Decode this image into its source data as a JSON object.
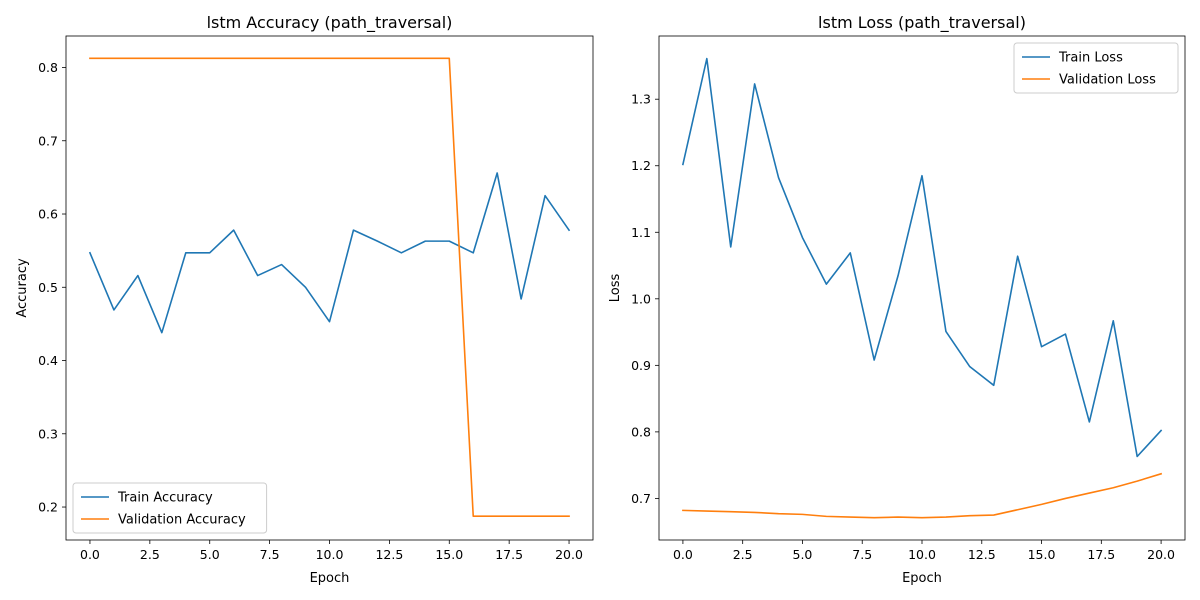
{
  "chart_data": [
    {
      "type": "line",
      "title": "lstm Accuracy (path_traversal)",
      "xlabel": "Epoch",
      "ylabel": "Accuracy",
      "xlim": [
        -1,
        21
      ],
      "ylim": [
        0.155,
        0.843
      ],
      "xticks": [
        0,
        2.5,
        5,
        7.5,
        10,
        12.5,
        15,
        17.5,
        20
      ],
      "xtick_labels": [
        "0.0",
        "2.5",
        "5.0",
        "7.5",
        "10.0",
        "12.5",
        "15.0",
        "17.5",
        "20.0"
      ],
      "yticks": [
        0.2,
        0.3,
        0.4,
        0.5,
        0.6,
        0.7,
        0.8
      ],
      "ytick_labels": [
        "0.2",
        "0.3",
        "0.4",
        "0.5",
        "0.6",
        "0.7",
        "0.8"
      ],
      "legend_position": "lower left",
      "grid": false,
      "x": [
        0,
        1,
        2,
        3,
        4,
        5,
        6,
        7,
        8,
        9,
        10,
        11,
        12,
        13,
        14,
        15,
        16,
        17,
        18,
        19,
        20
      ],
      "series": [
        {
          "name": "Train Accuracy",
          "color": "#1f77b4",
          "values": [
            0.547,
            0.469,
            0.516,
            0.438,
            0.547,
            0.547,
            0.578,
            0.516,
            0.531,
            0.5,
            0.453,
            0.578,
            0.563,
            0.547,
            0.563,
            0.563,
            0.547,
            0.656,
            0.484,
            0.625,
            0.578
          ]
        },
        {
          "name": "Validation Accuracy",
          "color": "#ff7f0e",
          "values": [
            0.8125,
            0.8125,
            0.8125,
            0.8125,
            0.8125,
            0.8125,
            0.8125,
            0.8125,
            0.8125,
            0.8125,
            0.8125,
            0.8125,
            0.8125,
            0.8125,
            0.8125,
            0.8125,
            0.1875,
            0.1875,
            0.1875,
            0.1875,
            0.1875
          ]
        }
      ]
    },
    {
      "type": "line",
      "title": "lstm Loss (path_traversal)",
      "xlabel": "Epoch",
      "ylabel": "Loss",
      "xlim": [
        -1,
        21
      ],
      "ylim": [
        0.6375,
        1.395
      ],
      "xticks": [
        0,
        2.5,
        5,
        7.5,
        10,
        12.5,
        15,
        17.5,
        20
      ],
      "xtick_labels": [
        "0.0",
        "2.5",
        "5.0",
        "7.5",
        "10.0",
        "12.5",
        "15.0",
        "17.5",
        "20.0"
      ],
      "yticks": [
        0.7,
        0.8,
        0.9,
        1.0,
        1.1,
        1.2,
        1.3
      ],
      "ytick_labels": [
        "0.7",
        "0.8",
        "0.9",
        "1.0",
        "1.1",
        "1.2",
        "1.3"
      ],
      "legend_position": "upper right",
      "grid": false,
      "x": [
        0,
        1,
        2,
        3,
        4,
        5,
        6,
        7,
        8,
        9,
        10,
        11,
        12,
        13,
        14,
        15,
        16,
        17,
        18,
        19,
        20
      ],
      "series": [
        {
          "name": "Train Loss",
          "color": "#1f77b4",
          "values": [
            1.202,
            1.361,
            1.078,
            1.323,
            1.182,
            1.092,
            1.022,
            1.069,
            0.908,
            1.035,
            1.185,
            0.951,
            0.898,
            0.87,
            1.064,
            0.928,
            0.947,
            0.815,
            0.967,
            0.763,
            0.802
          ]
        },
        {
          "name": "Validation Loss",
          "color": "#ff7f0e",
          "values": [
            0.682,
            0.681,
            0.68,
            0.679,
            0.677,
            0.676,
            0.673,
            0.672,
            0.671,
            0.672,
            0.671,
            0.672,
            0.674,
            0.675,
            0.683,
            0.691,
            0.7,
            0.708,
            0.716,
            0.726,
            0.737
          ]
        }
      ]
    }
  ]
}
